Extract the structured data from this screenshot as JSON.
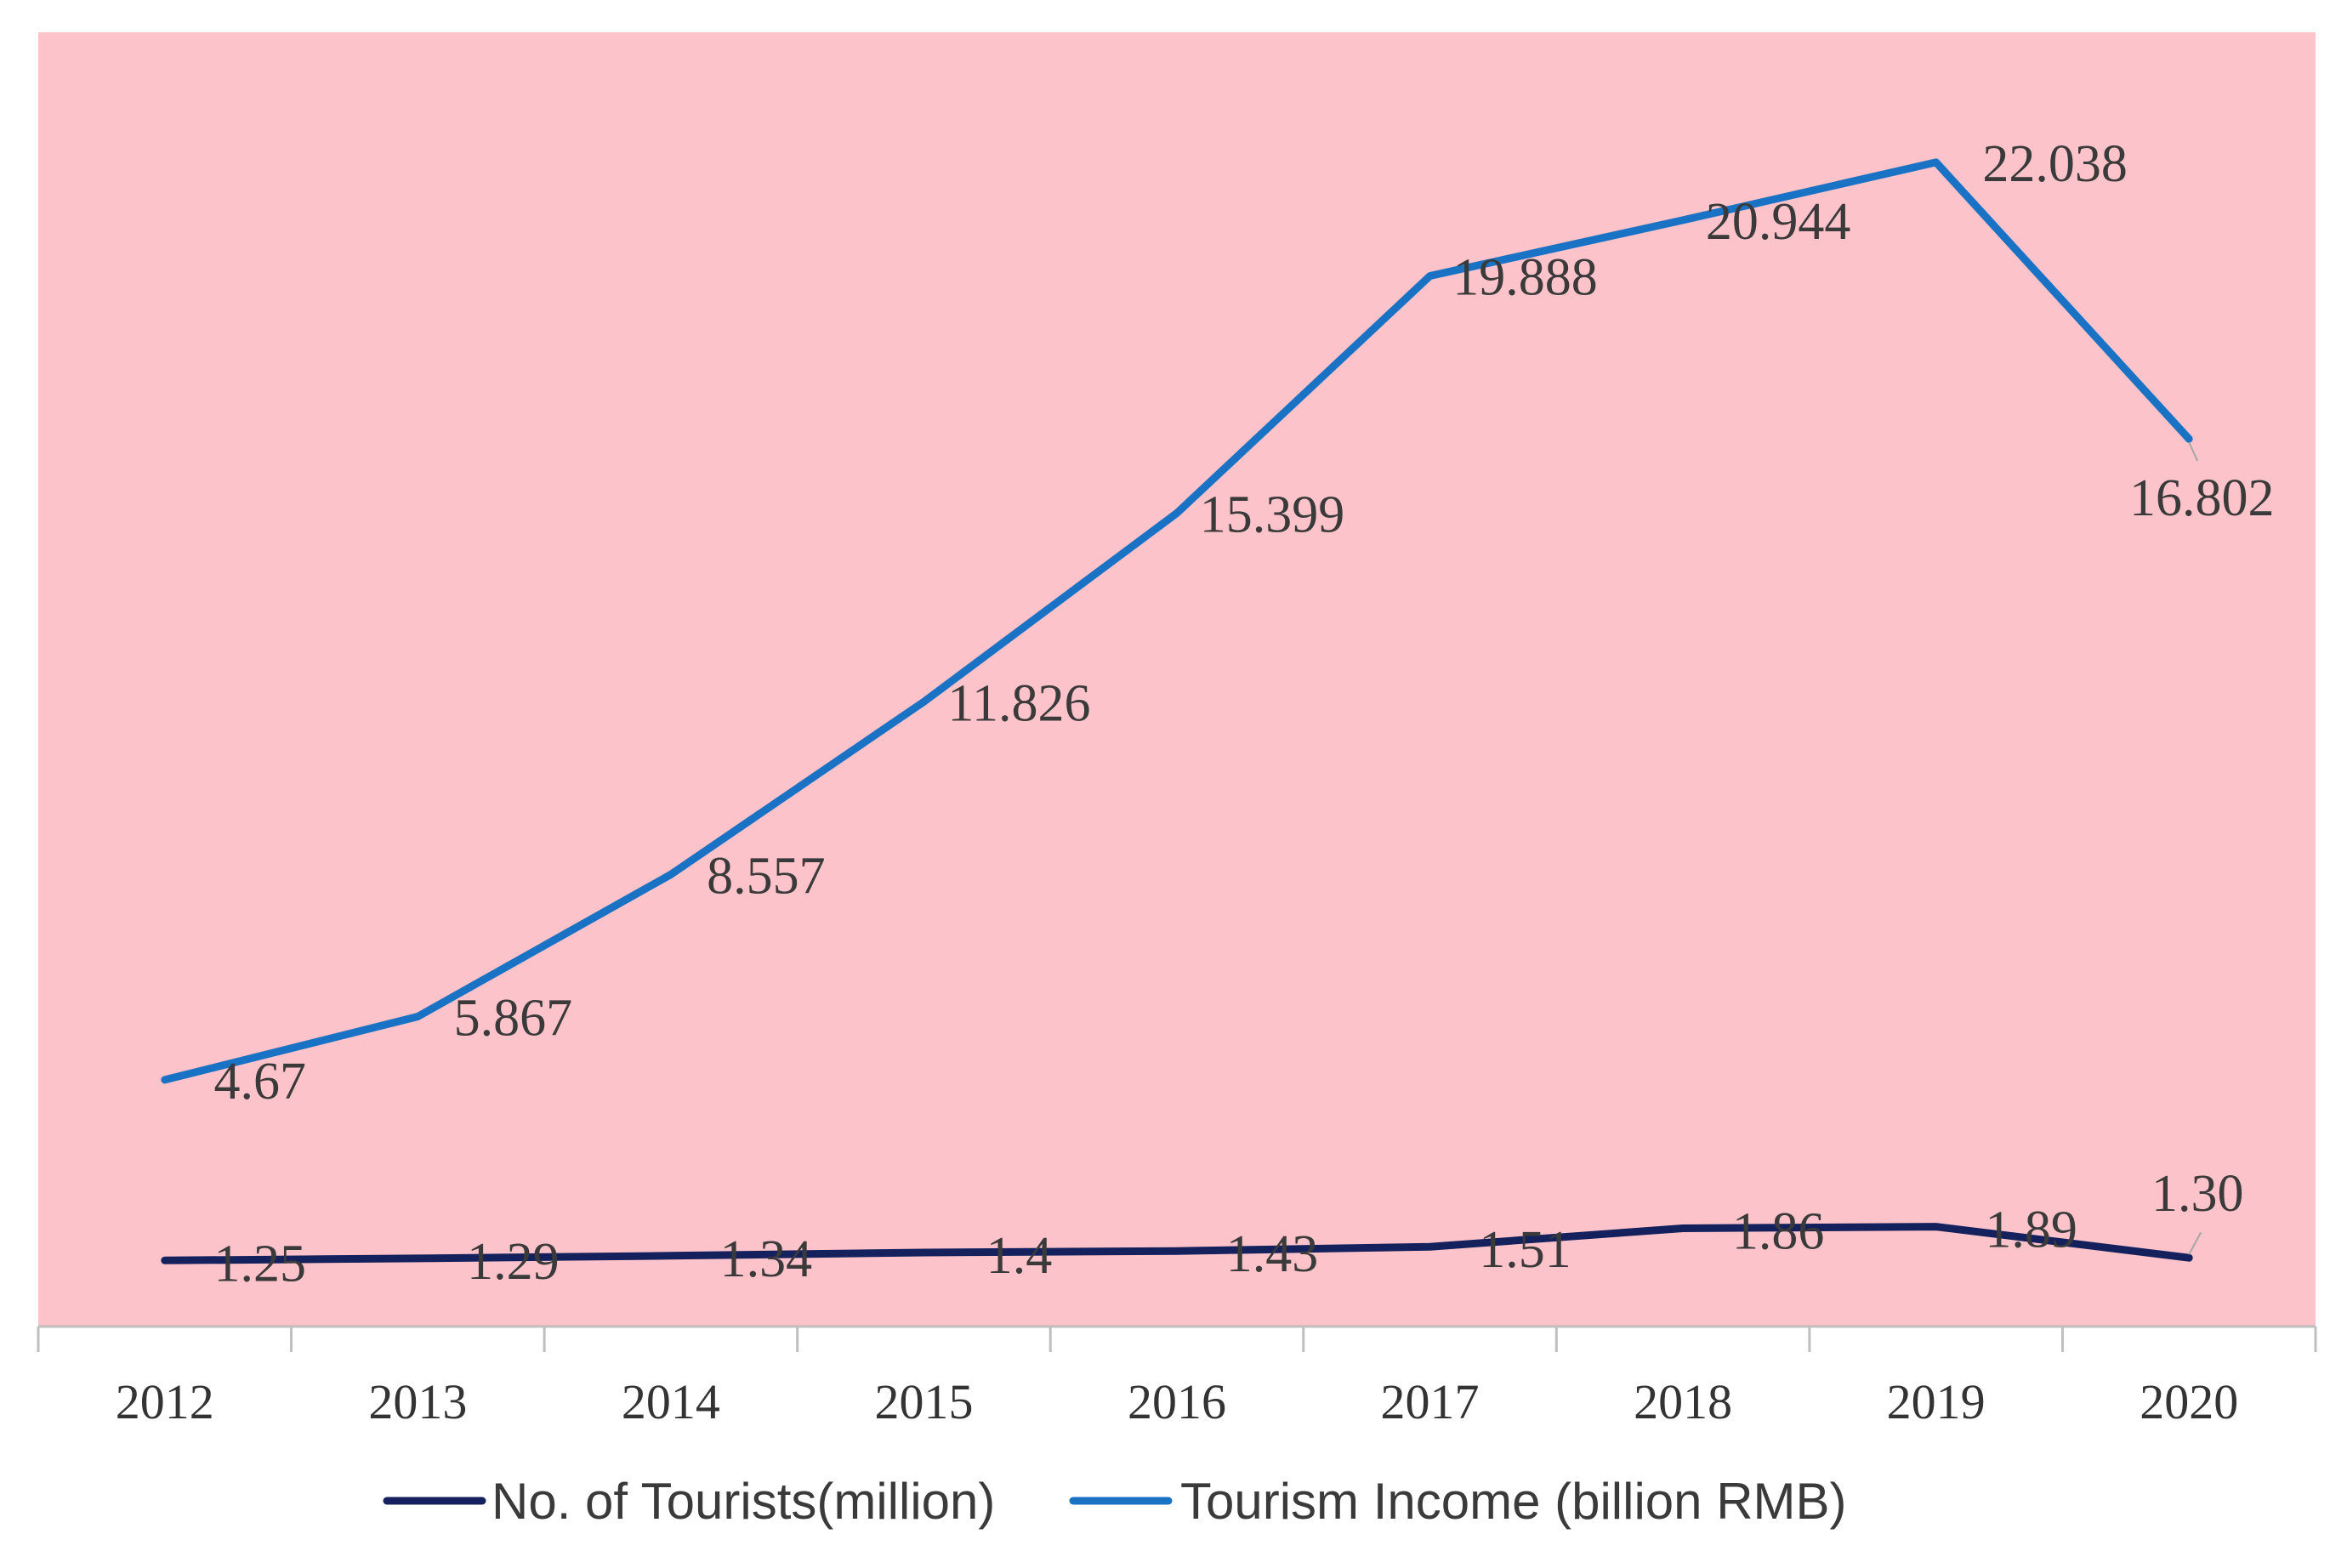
{
  "chart_data": {
    "type": "line",
    "title": "",
    "xlabel": "",
    "ylabel": "",
    "categories": [
      "2012",
      "2013",
      "2014",
      "2015",
      "2016",
      "2017",
      "2018",
      "2019",
      "2020"
    ],
    "ylim": [
      0,
      24.5
    ],
    "grid": false,
    "background_color": "#fdc3ca",
    "legend_position": "bottom",
    "series": [
      {
        "name": "No. of Tourists(million)",
        "color": "#14215c",
        "values": [
          1.25,
          1.29,
          1.34,
          1.4,
          1.43,
          1.51,
          1.86,
          1.89,
          1.3
        ],
        "labels": [
          "1.25",
          "1.29",
          "1.34",
          "1.4",
          "1.43",
          "1.51",
          "1.86",
          "1.89",
          "1.30"
        ]
      },
      {
        "name": "Tourism Income (billion RMB)",
        "color": "#1a72c4",
        "values": [
          4.67,
          5.867,
          8.557,
          11.826,
          15.399,
          19.888,
          20.944,
          22.038,
          16.802
        ],
        "labels": [
          "4.67",
          "5.867",
          "8.557",
          "11.826",
          "15.399",
          "19.888",
          "20.944",
          "22.038",
          "16.802"
        ]
      }
    ]
  }
}
